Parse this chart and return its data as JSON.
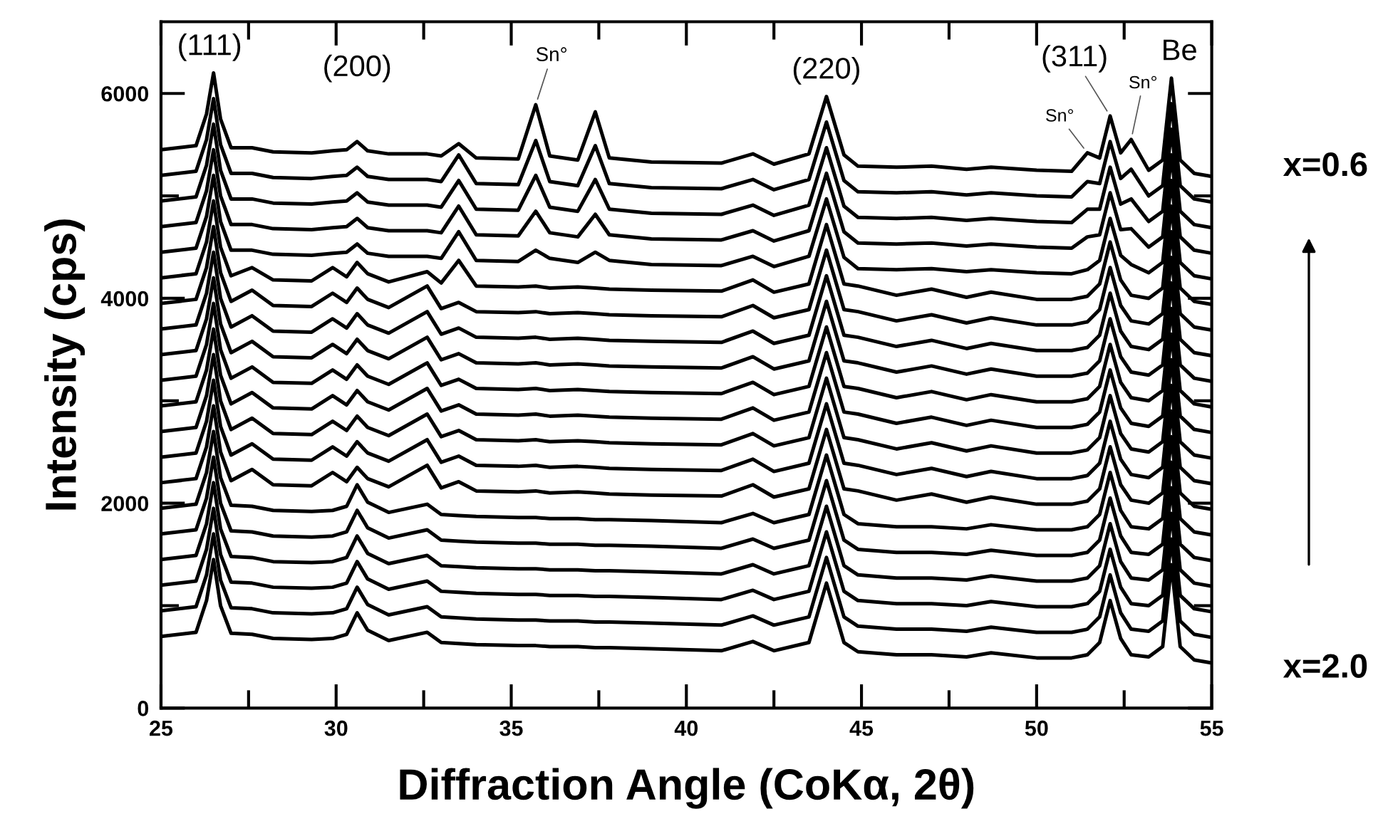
{
  "chart_data": {
    "type": "line",
    "xlabel": "Diffraction Angle (CoKα, 2θ)",
    "ylabel": "Intensity (cps)",
    "xlim": [
      25,
      55
    ],
    "ylim": [
      0,
      6700
    ],
    "xticks": [
      25,
      {
        "value": 27.5,
        "label": null
      },
      30,
      {
        "value": 32.5,
        "label": null
      },
      35,
      {
        "value": 37.5,
        "label": null
      },
      40,
      {
        "value": 42.5,
        "label": null
      },
      45,
      {
        "value": 47.5,
        "label": null
      },
      50,
      {
        "value": 52.5,
        "label": null
      },
      55
    ],
    "yticks": [
      0,
      {
        "value": 1000,
        "label": null
      },
      2000,
      {
        "value": 3000,
        "label": null
      },
      4000,
      {
        "value": 5000,
        "label": null
      },
      6000
    ],
    "marker": "none",
    "line_style": "solid",
    "x": [
      25,
      26.0,
      26.3,
      26.5,
      26.7,
      27.0,
      27.6,
      28.2,
      29.3,
      29.9,
      30.3,
      30.6,
      30.9,
      31.5,
      32.6,
      33.0,
      33.5,
      34.0,
      35.2,
      35.7,
      36.1,
      36.9,
      37.4,
      37.8,
      39.0,
      41.0,
      41.9,
      42.5,
      43.5,
      44.0,
      44.5,
      44.9,
      46.0,
      47.0,
      48.0,
      48.7,
      50.0,
      51.0,
      51.45,
      51.8,
      52.1,
      52.4,
      52.7,
      53.2,
      53.6,
      53.85,
      54.1,
      54.5,
      55
    ],
    "series": [
      {
        "color": "#000000",
        "values": [
          700,
          740,
          1050,
          1450,
          1000,
          730,
          720,
          680,
          670,
          680,
          720,
          930,
          760,
          660,
          740,
          640,
          630,
          620,
          610,
          610,
          600,
          600,
          590,
          590,
          580,
          560,
          650,
          560,
          640,
          1220,
          640,
          550,
          520,
          520,
          500,
          540,
          490,
          490,
          520,
          640,
          1050,
          680,
          520,
          500,
          600,
          1400,
          600,
          470,
          440
        ]
      },
      {
        "color": "#000000",
        "values": [
          950,
          990,
          1300,
          1700,
          1250,
          980,
          970,
          930,
          920,
          930,
          970,
          1180,
          1010,
          910,
          990,
          890,
          880,
          870,
          860,
          860,
          850,
          850,
          840,
          840,
          830,
          810,
          900,
          810,
          890,
          1470,
          890,
          800,
          770,
          770,
          750,
          790,
          740,
          740,
          770,
          890,
          1300,
          930,
          770,
          750,
          850,
          1650,
          850,
          720,
          690
        ]
      },
      {
        "color": "#000000",
        "values": [
          1200,
          1240,
          1550,
          1950,
          1500,
          1230,
          1220,
          1180,
          1170,
          1180,
          1220,
          1430,
          1260,
          1160,
          1240,
          1140,
          1130,
          1120,
          1110,
          1110,
          1100,
          1100,
          1090,
          1090,
          1080,
          1060,
          1150,
          1060,
          1140,
          1720,
          1140,
          1050,
          1020,
          1020,
          1000,
          1040,
          990,
          990,
          1020,
          1140,
          1550,
          1180,
          1020,
          1000,
          1100,
          1900,
          1100,
          970,
          940
        ]
      },
      {
        "color": "#000000",
        "values": [
          1450,
          1490,
          1800,
          2200,
          1750,
          1480,
          1470,
          1430,
          1420,
          1430,
          1470,
          1680,
          1510,
          1410,
          1490,
          1390,
          1380,
          1370,
          1360,
          1360,
          1350,
          1350,
          1340,
          1340,
          1330,
          1310,
          1400,
          1310,
          1390,
          1970,
          1390,
          1300,
          1270,
          1270,
          1250,
          1290,
          1240,
          1240,
          1270,
          1390,
          1800,
          1430,
          1270,
          1250,
          1350,
          2150,
          1350,
          1220,
          1190
        ]
      },
      {
        "color": "#000000",
        "values": [
          1700,
          1740,
          2050,
          2450,
          2000,
          1730,
          1720,
          1680,
          1670,
          1680,
          1720,
          1930,
          1760,
          1660,
          1740,
          1640,
          1630,
          1620,
          1610,
          1610,
          1600,
          1600,
          1590,
          1590,
          1580,
          1560,
          1650,
          1560,
          1640,
          2220,
          1640,
          1550,
          1520,
          1520,
          1500,
          1540,
          1490,
          1490,
          1520,
          1640,
          2050,
          1680,
          1520,
          1500,
          1600,
          2400,
          1600,
          1470,
          1440
        ]
      },
      {
        "color": "#000000",
        "values": [
          1950,
          1990,
          2300,
          2700,
          2250,
          1980,
          1970,
          1930,
          1920,
          1930,
          1970,
          2180,
          2010,
          1910,
          1990,
          1890,
          1880,
          1870,
          1860,
          1860,
          1850,
          1850,
          1840,
          1840,
          1830,
          1810,
          1900,
          1810,
          1890,
          2470,
          1890,
          1800,
          1770,
          1770,
          1750,
          1790,
          1740,
          1740,
          1770,
          1890,
          2300,
          1930,
          1770,
          1750,
          1850,
          2650,
          1850,
          1720,
          1690
        ]
      },
      {
        "color": "#000000",
        "values": [
          2200,
          2240,
          2550,
          2950,
          2500,
          2220,
          2330,
          2180,
          2170,
          2300,
          2210,
          2350,
          2240,
          2160,
          2370,
          2150,
          2210,
          2120,
          2110,
          2120,
          2100,
          2110,
          2100,
          2090,
          2080,
          2070,
          2180,
          2060,
          2140,
          2720,
          2140,
          2120,
          2030,
          2090,
          2010,
          2060,
          1990,
          1990,
          2020,
          2140,
          2550,
          2180,
          2030,
          2000,
          2100,
          2900,
          2100,
          1970,
          1940
        ]
      },
      {
        "color": "#000000",
        "values": [
          2450,
          2490,
          2800,
          3200,
          2750,
          2470,
          2580,
          2430,
          2420,
          2550,
          2460,
          2600,
          2490,
          2410,
          2620,
          2400,
          2460,
          2370,
          2360,
          2370,
          2350,
          2360,
          2350,
          2340,
          2330,
          2320,
          2430,
          2310,
          2390,
          2970,
          2390,
          2370,
          2280,
          2340,
          2260,
          2310,
          2240,
          2240,
          2270,
          2390,
          2800,
          2430,
          2280,
          2250,
          2350,
          3150,
          2350,
          2220,
          2190
        ]
      },
      {
        "color": "#000000",
        "values": [
          2700,
          2740,
          3050,
          3450,
          3000,
          2720,
          2830,
          2680,
          2670,
          2800,
          2710,
          2850,
          2740,
          2660,
          2870,
          2650,
          2710,
          2620,
          2610,
          2620,
          2600,
          2610,
          2600,
          2590,
          2580,
          2570,
          2680,
          2560,
          2640,
          3220,
          2640,
          2620,
          2530,
          2590,
          2510,
          2560,
          2490,
          2490,
          2520,
          2640,
          3050,
          2680,
          2530,
          2500,
          2600,
          3400,
          2600,
          2470,
          2440
        ]
      },
      {
        "color": "#000000",
        "values": [
          2950,
          2990,
          3300,
          3700,
          3250,
          2970,
          3080,
          2930,
          2920,
          3050,
          2960,
          3100,
          2990,
          2910,
          3120,
          2900,
          2960,
          2870,
          2860,
          2870,
          2850,
          2860,
          2850,
          2840,
          2830,
          2820,
          2930,
          2810,
          2890,
          3470,
          2890,
          2870,
          2780,
          2840,
          2760,
          2810,
          2740,
          2740,
          2770,
          2890,
          3300,
          2930,
          2780,
          2750,
          2850,
          3650,
          2850,
          2720,
          2690
        ]
      },
      {
        "color": "#000000",
        "values": [
          3200,
          3240,
          3550,
          3950,
          3500,
          3220,
          3330,
          3180,
          3170,
          3300,
          3210,
          3350,
          3240,
          3160,
          3370,
          3150,
          3210,
          3120,
          3110,
          3120,
          3100,
          3110,
          3100,
          3090,
          3080,
          3070,
          3180,
          3060,
          3140,
          3720,
          3140,
          3120,
          3030,
          3090,
          3010,
          3060,
          2990,
          2990,
          3020,
          3140,
          3550,
          3180,
          3030,
          3000,
          3100,
          3900,
          3100,
          2970,
          2940
        ]
      },
      {
        "color": "#000000",
        "values": [
          3450,
          3490,
          3800,
          4200,
          3750,
          3470,
          3580,
          3430,
          3420,
          3550,
          3460,
          3600,
          3490,
          3410,
          3620,
          3400,
          3460,
          3370,
          3360,
          3370,
          3350,
          3360,
          3350,
          3340,
          3330,
          3320,
          3430,
          3310,
          3390,
          3970,
          3390,
          3370,
          3280,
          3340,
          3260,
          3310,
          3240,
          3240,
          3270,
          3390,
          3800,
          3430,
          3280,
          3250,
          3350,
          4150,
          3350,
          3220,
          3190
        ]
      },
      {
        "color": "#000000",
        "values": [
          3700,
          3740,
          4050,
          4450,
          4000,
          3720,
          3830,
          3680,
          3670,
          3800,
          3710,
          3850,
          3740,
          3660,
          3870,
          3650,
          3710,
          3620,
          3610,
          3620,
          3600,
          3610,
          3600,
          3590,
          3580,
          3570,
          3680,
          3560,
          3640,
          4220,
          3640,
          3620,
          3530,
          3590,
          3510,
          3560,
          3490,
          3490,
          3520,
          3640,
          4050,
          3680,
          3530,
          3500,
          3600,
          4400,
          3600,
          3470,
          3440
        ]
      },
      {
        "color": "#000000",
        "values": [
          3950,
          3990,
          4300,
          4700,
          4250,
          3970,
          4080,
          3930,
          3920,
          4050,
          3960,
          4100,
          3990,
          3910,
          4120,
          3900,
          3960,
          3870,
          3860,
          3870,
          3850,
          3860,
          3850,
          3840,
          3830,
          3820,
          3930,
          3810,
          3890,
          4470,
          3890,
          3870,
          3780,
          3840,
          3760,
          3810,
          3740,
          3740,
          3770,
          3890,
          4300,
          3930,
          3780,
          3750,
          3850,
          4650,
          3850,
          3720,
          3690
        ]
      },
      {
        "color": "#000000",
        "values": [
          4200,
          4240,
          4550,
          4950,
          4500,
          4220,
          4300,
          4180,
          4170,
          4300,
          4210,
          4350,
          4240,
          4160,
          4260,
          4150,
          4370,
          4120,
          4110,
          4120,
          4100,
          4110,
          4100,
          4090,
          4080,
          4070,
          4180,
          4060,
          4140,
          4720,
          4140,
          4120,
          4030,
          4090,
          4010,
          4060,
          3990,
          3990,
          4020,
          4140,
          4550,
          4180,
          4030,
          4000,
          4100,
          4900,
          4100,
          3970,
          3940
        ]
      },
      {
        "color": "#000000",
        "values": [
          4450,
          4490,
          4800,
          5200,
          4750,
          4470,
          4470,
          4430,
          4420,
          4440,
          4450,
          4530,
          4440,
          4410,
          4410,
          4390,
          4650,
          4370,
          4360,
          4470,
          4390,
          4350,
          4450,
          4370,
          4330,
          4320,
          4410,
          4310,
          4410,
          4970,
          4400,
          4290,
          4280,
          4290,
          4260,
          4280,
          4250,
          4240,
          4280,
          4370,
          4780,
          4420,
          4330,
          4250,
          4350,
          5150,
          4350,
          4220,
          4190
        ]
      },
      {
        "color": "#000000",
        "values": [
          4700,
          4740,
          5050,
          5450,
          5000,
          4720,
          4720,
          4680,
          4670,
          4690,
          4700,
          4780,
          4690,
          4660,
          4660,
          4640,
          4900,
          4620,
          4610,
          4850,
          4640,
          4600,
          4820,
          4620,
          4580,
          4570,
          4660,
          4560,
          4660,
          5220,
          4650,
          4540,
          4530,
          4540,
          4510,
          4530,
          4500,
          4490,
          4600,
          4620,
          5030,
          4670,
          4680,
          4500,
          4600,
          5400,
          4600,
          4470,
          4440
        ]
      },
      {
        "color": "#000000",
        "values": [
          4950,
          4990,
          5300,
          5700,
          5250,
          4970,
          4970,
          4930,
          4920,
          4940,
          4950,
          5030,
          4940,
          4910,
          4910,
          4890,
          5150,
          4870,
          4860,
          5200,
          4890,
          4850,
          5160,
          4870,
          4830,
          4820,
          4910,
          4810,
          4910,
          5470,
          4900,
          4790,
          4780,
          4790,
          4760,
          4780,
          4750,
          4740,
          4870,
          4870,
          5280,
          4920,
          4970,
          4750,
          4850,
          5650,
          4850,
          4720,
          4690
        ]
      },
      {
        "color": "#000000",
        "values": [
          5200,
          5240,
          5550,
          5950,
          5500,
          5220,
          5220,
          5180,
          5170,
          5190,
          5200,
          5280,
          5190,
          5160,
          5160,
          5140,
          5400,
          5120,
          5110,
          5540,
          5140,
          5100,
          5490,
          5120,
          5080,
          5070,
          5160,
          5060,
          5160,
          5720,
          5150,
          5040,
          5030,
          5040,
          5010,
          5030,
          5000,
          4990,
          5140,
          5120,
          5530,
          5170,
          5260,
          5000,
          5100,
          5900,
          5100,
          4970,
          4940
        ]
      },
      {
        "color": "#000000",
        "values": [
          5450,
          5490,
          5800,
          6200,
          5750,
          5470,
          5470,
          5430,
          5420,
          5440,
          5450,
          5530,
          5440,
          5410,
          5410,
          5390,
          5510,
          5370,
          5360,
          5890,
          5390,
          5350,
          5820,
          5370,
          5330,
          5320,
          5410,
          5310,
          5410,
          5970,
          5400,
          5290,
          5280,
          5290,
          5260,
          5280,
          5250,
          5240,
          5420,
          5370,
          5780,
          5420,
          5550,
          5250,
          5350,
          6150,
          5350,
          5220,
          5190
        ]
      }
    ],
    "annotations": [
      {
        "text": "(111)",
        "x": 26.5,
        "y": 6200
      },
      {
        "text": "(200)",
        "x": 30.6,
        "y": 5530
      },
      {
        "text": "Sn°",
        "x": 35.7,
        "y": 5890
      },
      {
        "text": "(220)",
        "x": 44.0,
        "y": 5970
      },
      {
        "text": "Sn°",
        "x": 51.45,
        "y": 5420
      },
      {
        "text": "(311)",
        "x": 52.1,
        "y": 5780
      },
      {
        "text": "Sn°",
        "x": 52.7,
        "y": 5550
      },
      {
        "text": "Be",
        "x": 53.85,
        "y": 6150
      },
      "x=0.6",
      "x=2.0"
    ]
  }
}
